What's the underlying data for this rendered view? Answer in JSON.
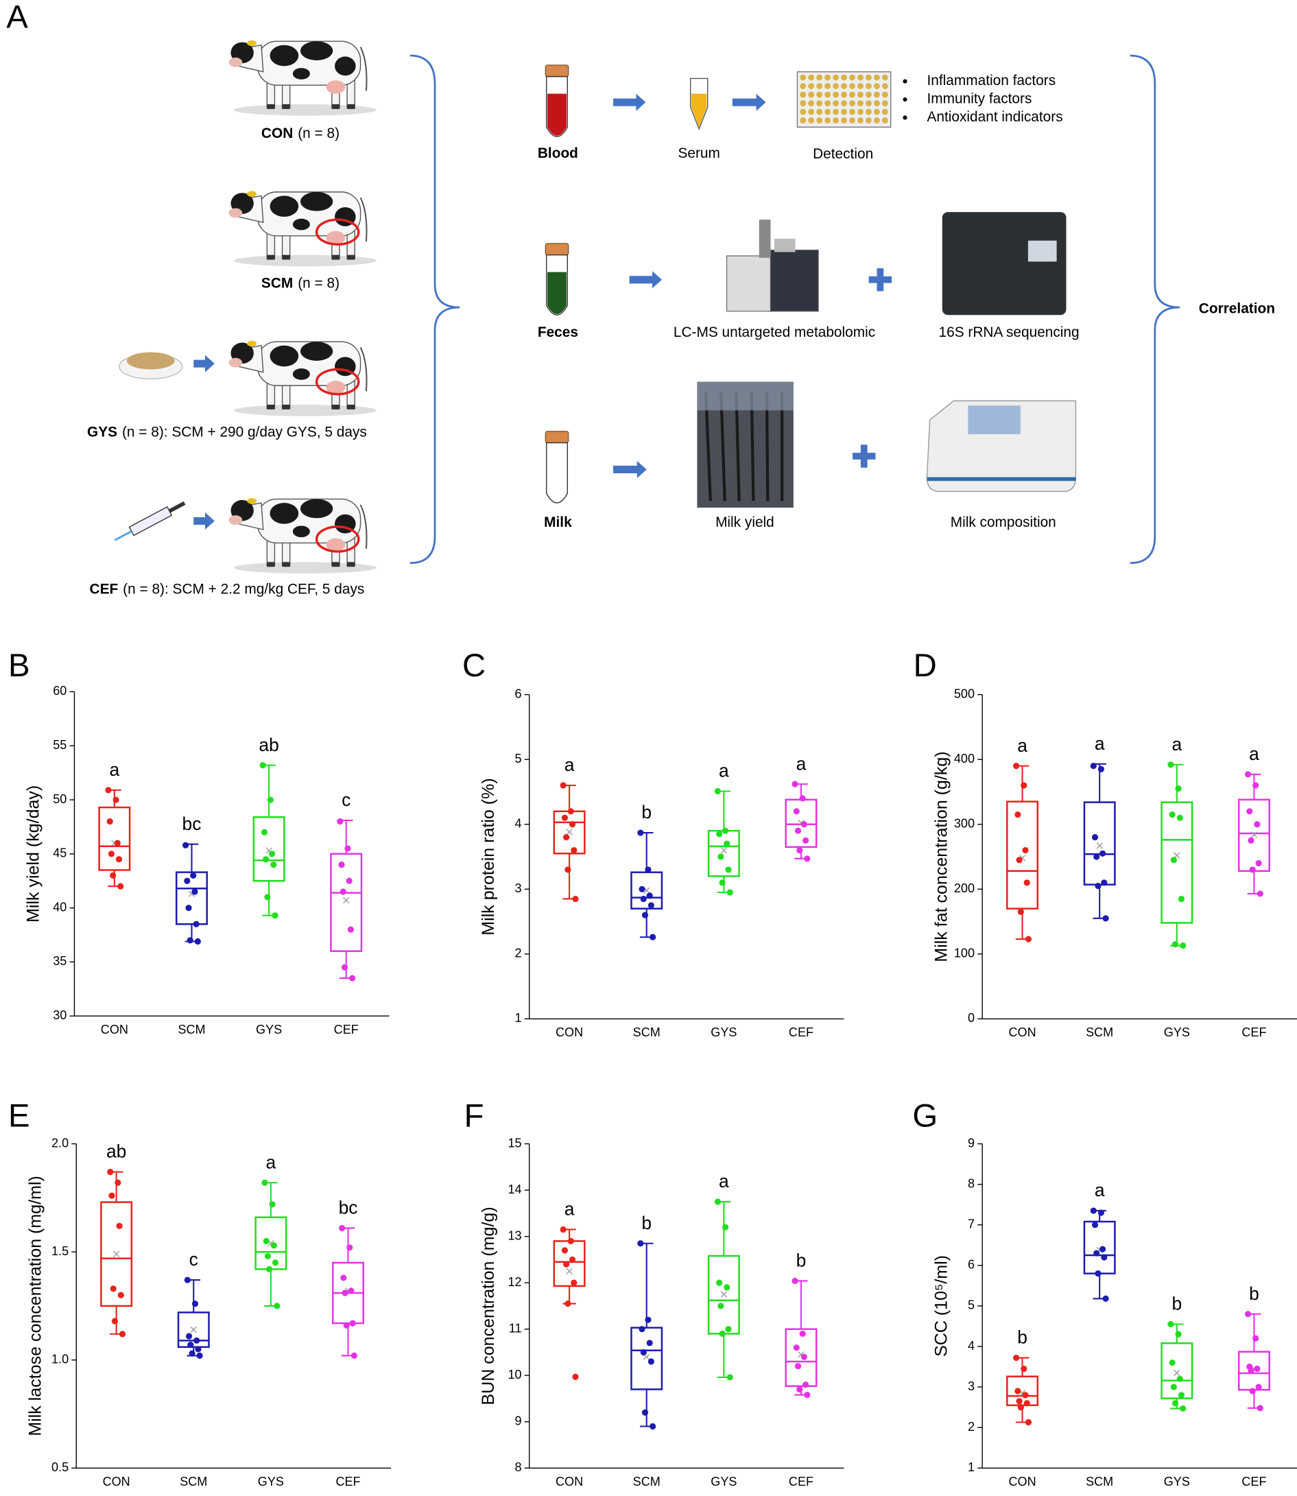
{
  "panel_a": {
    "label": "A",
    "groups": [
      {
        "name": "CON",
        "desc": "(n = 8)"
      },
      {
        "name": "SCM",
        "desc": "(n = 8)"
      },
      {
        "name": "GYS",
        "desc": "(n = 8): SCM + 290 g/day GYS, 5 days"
      },
      {
        "name": "CEF",
        "desc": "(n = 8): SCM + 2.2 mg/kg CEF, 5 days"
      }
    ],
    "samples": [
      {
        "name": "Blood",
        "steps": [
          "Serum",
          "Detection"
        ]
      },
      {
        "name": "Feces",
        "steps": [
          "LC-MS untargeted metabolomic",
          "16S rRNA sequencing"
        ]
      },
      {
        "name": "Milk",
        "steps": [
          "Milk yield",
          "Milk composition"
        ]
      }
    ],
    "indicators": [
      "Inflammation factors",
      "Immunity factors",
      "Antioxidant indicators"
    ],
    "correlation": "Correlation"
  },
  "chart_data": [
    {
      "type": "box",
      "panel": "B",
      "ylabel": "Milk yield (kg/day)",
      "categories": [
        "CON",
        "SCM",
        "GYS",
        "CEF"
      ],
      "colors": [
        "#e8231c",
        "#1c1cb0",
        "#22dd1f",
        "#e433e4"
      ],
      "ylim": [
        30,
        60
      ],
      "yticks": [
        30,
        35,
        40,
        45,
        50,
        55,
        60
      ],
      "boxes": [
        {
          "min": 42.0,
          "q1": 43.5,
          "median": 45.7,
          "q3": 49.3,
          "max": 50.9,
          "mean": 46.0,
          "letter": "a",
          "points": [
            50.9,
            50.0,
            48.0,
            46.0,
            45.0,
            44.5,
            43.0,
            42.0
          ]
        },
        {
          "min": 36.9,
          "q1": 38.5,
          "median": 41.8,
          "q3": 43.3,
          "max": 45.9,
          "mean": 41.3,
          "letter": "bc",
          "points": [
            45.8,
            43.0,
            42.5,
            41.5,
            40.0,
            38.5,
            37.0,
            36.9
          ]
        },
        {
          "min": 39.3,
          "q1": 42.5,
          "median": 44.4,
          "q3": 48.4,
          "max": 53.2,
          "mean": 45.3,
          "letter": "ab",
          "points": [
            53.2,
            50.0,
            47.0,
            45.0,
            44.5,
            44.0,
            41.0,
            39.3
          ]
        },
        {
          "min": 33.5,
          "q1": 36.0,
          "median": 41.4,
          "q3": 45.0,
          "max": 48.1,
          "mean": 40.7,
          "letter": "c",
          "points": [
            48.0,
            45.5,
            44.0,
            42.5,
            41.5,
            38.0,
            34.5,
            33.5
          ]
        }
      ]
    },
    {
      "type": "box",
      "panel": "C",
      "ylabel": "Milk protein ratio (%)",
      "categories": [
        "CON",
        "SCM",
        "GYS",
        "CEF"
      ],
      "colors": [
        "#e8231c",
        "#1c1cb0",
        "#22dd1f",
        "#e433e4"
      ],
      "ylim": [
        1,
        6
      ],
      "yticks": [
        1,
        2,
        3,
        4,
        5,
        6
      ],
      "boxes": [
        {
          "min": 2.85,
          "q1": 3.55,
          "median": 4.03,
          "q3": 4.2,
          "max": 4.6,
          "mean": 3.88,
          "letter": "a",
          "points": [
            4.6,
            4.2,
            4.1,
            4.0,
            3.8,
            3.6,
            3.3,
            2.85
          ]
        },
        {
          "min": 2.26,
          "q1": 2.7,
          "median": 2.87,
          "q3": 3.26,
          "max": 3.87,
          "mean": 2.98,
          "letter": "b",
          "points": [
            3.87,
            3.3,
            3.0,
            2.9,
            2.85,
            2.75,
            2.6,
            2.26
          ]
        },
        {
          "min": 2.95,
          "q1": 3.2,
          "median": 3.66,
          "q3": 3.9,
          "max": 4.51,
          "mean": 3.6,
          "letter": "a",
          "points": [
            4.51,
            3.9,
            3.85,
            3.7,
            3.5,
            3.3,
            3.1,
            2.95
          ]
        },
        {
          "min": 3.47,
          "q1": 3.65,
          "median": 4.0,
          "q3": 4.38,
          "max": 4.62,
          "mean": 4.02,
          "letter": "a",
          "points": [
            4.62,
            4.4,
            4.2,
            4.0,
            3.9,
            3.75,
            3.6,
            3.47
          ]
        }
      ]
    },
    {
      "type": "box",
      "panel": "D",
      "ylabel": "Milk fat concentration (g/kg)",
      "categories": [
        "CON",
        "SCM",
        "GYS",
        "CEF"
      ],
      "colors": [
        "#e8231c",
        "#1c1cb0",
        "#22dd1f",
        "#e433e4"
      ],
      "ylim": [
        0,
        500
      ],
      "yticks": [
        0,
        100,
        200,
        300,
        400,
        500
      ],
      "boxes": [
        {
          "min": 123,
          "q1": 170,
          "median": 228,
          "q3": 335,
          "max": 390,
          "mean": 248,
          "letter": "a",
          "points": [
            390,
            360,
            315,
            260,
            245,
            210,
            165,
            123
          ]
        },
        {
          "min": 155,
          "q1": 207,
          "median": 254,
          "q3": 334,
          "max": 393,
          "mean": 267,
          "letter": "a",
          "points": [
            390,
            385,
            280,
            255,
            250,
            210,
            205,
            155
          ]
        },
        {
          "min": 113,
          "q1": 148,
          "median": 276,
          "q3": 334,
          "max": 392,
          "mean": 252,
          "letter": "a",
          "points": [
            392,
            355,
            315,
            310,
            245,
            185,
            115,
            113
          ]
        },
        {
          "min": 193,
          "q1": 228,
          "median": 286,
          "q3": 338,
          "max": 377,
          "mean": 284,
          "letter": "a",
          "points": [
            377,
            360,
            320,
            300,
            275,
            240,
            230,
            193
          ]
        }
      ]
    },
    {
      "type": "box",
      "panel": "E",
      "ylabel": "Milk lactose concentration (mg/ml)",
      "categories": [
        "CON",
        "SCM",
        "GYS",
        "CEF"
      ],
      "colors": [
        "#e8231c",
        "#1c1cb0",
        "#22dd1f",
        "#e433e4"
      ],
      "ylim": [
        0.5,
        2.0
      ],
      "yticks": [
        0.5,
        {
          "value": 1,
          "label": "1.0"
        },
        1.5,
        {
          "value": 2,
          "label": "2.0"
        }
      ],
      "boxes": [
        {
          "min": 1.12,
          "q1": 1.25,
          "median": 1.47,
          "q3": 1.73,
          "max": 1.87,
          "mean": 1.49,
          "letter": "ab",
          "points": [
            1.87,
            1.82,
            1.76,
            1.62,
            1.33,
            1.3,
            1.18,
            1.12
          ]
        },
        {
          "min": 1.02,
          "q1": 1.06,
          "median": 1.09,
          "q3": 1.22,
          "max": 1.37,
          "mean": 1.14,
          "letter": "c",
          "points": [
            1.37,
            1.26,
            1.11,
            1.09,
            1.07,
            1.05,
            1.03,
            1.02
          ]
        },
        {
          "min": 1.25,
          "q1": 1.42,
          "median": 1.5,
          "q3": 1.66,
          "max": 1.82,
          "mean": 1.54,
          "letter": "a",
          "points": [
            1.82,
            1.72,
            1.55,
            1.53,
            1.48,
            1.45,
            1.42,
            1.25
          ]
        },
        {
          "min": 1.02,
          "q1": 1.17,
          "median": 1.31,
          "q3": 1.45,
          "max": 1.61,
          "mean": 1.32,
          "letter": "bc",
          "points": [
            1.61,
            1.52,
            1.38,
            1.32,
            1.31,
            1.17,
            1.16,
            1.02
          ]
        }
      ]
    },
    {
      "type": "box",
      "panel": "F",
      "ylabel": "BUN concentration (mg/g)",
      "categories": [
        "CON",
        "SCM",
        "GYS",
        "CEF"
      ],
      "colors": [
        "#e8231c",
        "#1c1cb0",
        "#22dd1f",
        "#e433e4"
      ],
      "ylim": [
        8,
        15
      ],
      "yticks": [
        8,
        9,
        10,
        11,
        12,
        13,
        14,
        15
      ],
      "boxes": [
        {
          "min": 11.55,
          "q1": 11.93,
          "median": 12.45,
          "q3": 12.9,
          "max": 13.15,
          "mean": 12.25,
          "letter": "a",
          "points": [
            13.15,
            12.9,
            12.7,
            12.5,
            12.4,
            12.0,
            11.55,
            9.97
          ]
        },
        {
          "min": 8.9,
          "q1": 9.7,
          "median": 10.54,
          "q3": 11.03,
          "max": 12.85,
          "mean": 10.4,
          "letter": "b",
          "points": [
            12.85,
            11.2,
            11.0,
            10.7,
            10.5,
            10.3,
            9.2,
            8.9
          ]
        },
        {
          "min": 9.96,
          "q1": 10.9,
          "median": 11.62,
          "q3": 12.58,
          "max": 13.75,
          "mean": 11.75,
          "letter": "a",
          "points": [
            13.75,
            13.2,
            12.0,
            11.9,
            11.5,
            11.0,
            10.9,
            9.96
          ]
        },
        {
          "min": 9.58,
          "q1": 9.77,
          "median": 10.3,
          "q3": 11.0,
          "max": 12.04,
          "mean": 10.45,
          "letter": "b",
          "points": [
            12.04,
            10.9,
            10.6,
            10.4,
            10.2,
            9.8,
            9.7,
            9.58
          ]
        }
      ]
    },
    {
      "type": "box",
      "panel": "G",
      "ylabel": "SCC (10⁵/ml)",
      "categories": [
        "CON",
        "SCM",
        "GYS",
        "CEF"
      ],
      "colors": [
        "#e8231c",
        "#1c1cb0",
        "#22dd1f",
        "#e433e4"
      ],
      "ylim": [
        1,
        9
      ],
      "yticks": [
        1,
        2,
        3,
        4,
        5,
        6,
        7,
        8,
        9
      ],
      "boxes": [
        {
          "min": 2.13,
          "q1": 2.55,
          "median": 2.78,
          "q3": 3.26,
          "max": 3.72,
          "mean": 2.85,
          "letter": "b",
          "points": [
            3.72,
            3.45,
            2.9,
            2.8,
            2.65,
            2.6,
            2.5,
            2.13
          ]
        },
        {
          "min": 5.18,
          "q1": 5.8,
          "median": 6.25,
          "q3": 7.08,
          "max": 7.35,
          "mean": 6.38,
          "letter": "a",
          "points": [
            7.35,
            7.3,
            7.0,
            6.4,
            6.3,
            6.2,
            5.8,
            5.18
          ]
        },
        {
          "min": 2.47,
          "q1": 2.72,
          "median": 3.16,
          "q3": 4.08,
          "max": 4.55,
          "mean": 3.35,
          "letter": "b",
          "points": [
            4.55,
            4.3,
            3.6,
            3.2,
            3.0,
            2.8,
            2.6,
            2.47
          ]
        },
        {
          "min": 2.48,
          "q1": 2.93,
          "median": 3.34,
          "q3": 3.87,
          "max": 4.8,
          "mean": 3.45,
          "letter": "b",
          "points": [
            4.8,
            4.2,
            3.5,
            3.45,
            3.4,
            3.0,
            2.9,
            2.48
          ]
        }
      ]
    }
  ]
}
